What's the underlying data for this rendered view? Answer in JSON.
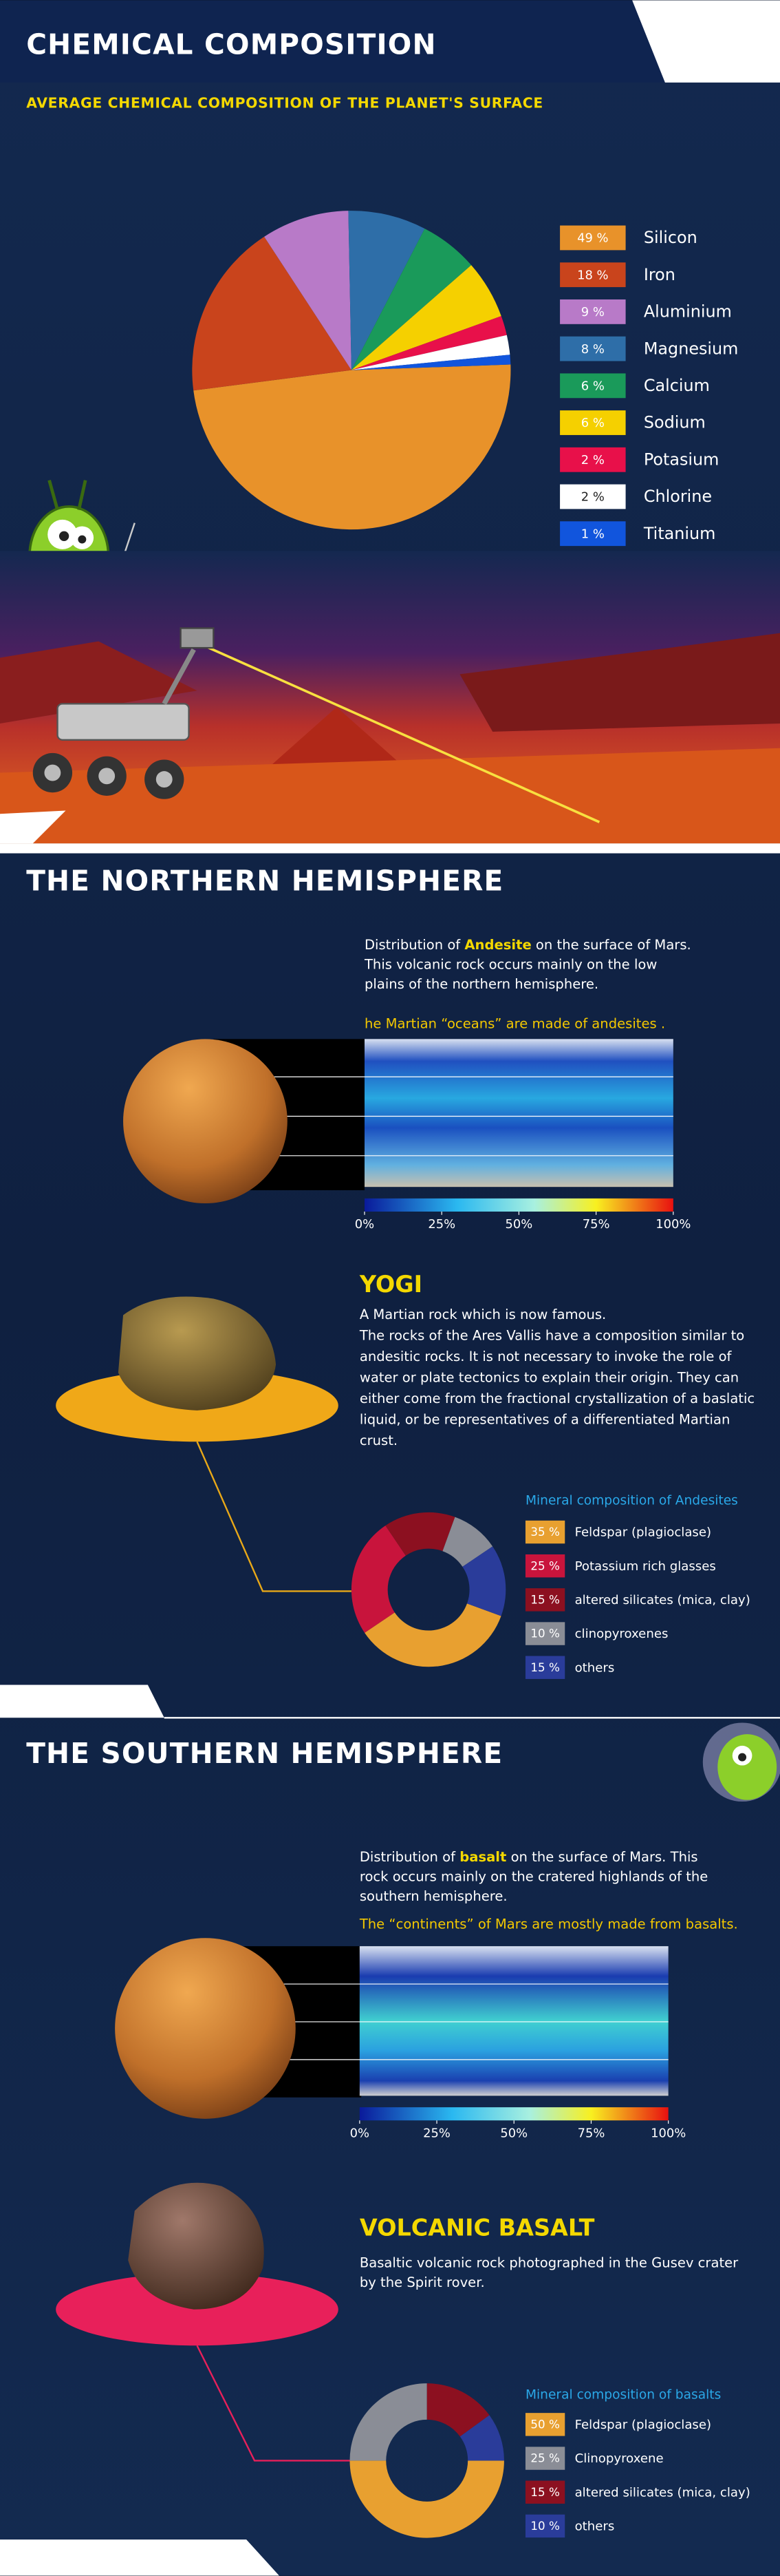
{
  "composition": {
    "type": "pie",
    "title": "CHEMICAL COMPOSITION",
    "subtitle": "AVERAGE CHEMICAL COMPOSITION OF THE PLANET'S SURFACE",
    "categories": [
      "Silicon",
      "Iron",
      "Aluminium",
      "Magnesium",
      "Calcium",
      "Sodium",
      "Potasium",
      "Chlorine",
      "Titanium"
    ],
    "values": [
      49,
      18,
      9,
      8,
      6,
      6,
      2,
      2,
      1
    ],
    "value_labels": [
      "49 %",
      "18 %",
      "9 %",
      "8 %",
      "6 %",
      "6 %",
      "2 %",
      "2 %",
      "1 %"
    ],
    "colors": [
      "#e8922a",
      "#c9441c",
      "#b87ac8",
      "#2e6ea8",
      "#1a9a5a",
      "#f5d000",
      "#e8104a",
      "#ffffff",
      "#1155dd"
    ]
  },
  "north": {
    "heading": "THE NORTHERN HEMISPHERE",
    "description": [
      [
        "Distribution of ",
        "Andesite",
        " on the surface of Mars."
      ],
      [
        "This volcanic rock occurs mainly on the low"
      ],
      [
        "plains of the northern hemisphere."
      ]
    ],
    "note": "he Martian “oceans” are made of andesites .",
    "colorbar": {
      "lim": [
        0,
        100
      ],
      "ticks": [
        {
          "value": 0,
          "label": "0%"
        },
        {
          "value": 25,
          "label": "25%"
        },
        {
          "value": 50,
          "label": "50%"
        },
        {
          "value": 75,
          "label": "75%"
        },
        {
          "value": 100,
          "label": "100%"
        }
      ]
    },
    "rock": {
      "title": "YOGI",
      "text": [
        "A Martian rock which is now famous.",
        "The rocks of the Ares Vallis have a composition similar to",
        "andesitic rocks.  It is not necessary to invoke the role of",
        "water or plate tectonics to explain their origin. They can",
        "either come from the fractional crystallization of a baslatic",
        "liquid, or be representatives of a differentiated Martian",
        "crust."
      ]
    },
    "minerals": {
      "type": "donut",
      "title": "Mineral composition of Andesites",
      "categories": [
        "Feldspar (plagioclase)",
        "Potassium rich glasses",
        "altered silicates (mica, clay)",
        "clinopyroxenes",
        "others"
      ],
      "values": [
        35,
        25,
        15,
        10,
        15
      ],
      "value_labels": [
        "35 %",
        "25 %",
        "15 %",
        "10 %",
        "15 %"
      ],
      "colors": [
        "#e8a030",
        "#c8143c",
        "#8c1020",
        "#8a8d96",
        "#2a3c9a"
      ]
    }
  },
  "south": {
    "heading": "THE SOUTHERN HEMISPHERE",
    "description": [
      [
        "Distribution of ",
        "basalt",
        " on the surface of Mars. This"
      ],
      [
        "rock occurs mainly on the cratered highlands of the"
      ],
      [
        "southern hemisphere."
      ]
    ],
    "note": "The “continents” of Mars are mostly made from basalts.",
    "colorbar": {
      "lim": [
        0,
        100
      ],
      "ticks": [
        {
          "value": 0,
          "label": "0%"
        },
        {
          "value": 25,
          "label": "25%"
        },
        {
          "value": 50,
          "label": "50%"
        },
        {
          "value": 75,
          "label": "75%"
        },
        {
          "value": 100,
          "label": "100%"
        }
      ]
    },
    "rock": {
      "title": "VOLCANIC BASALT",
      "text": [
        "Basaltic volcanic rock photographed in the Gusev crater",
        "by the Spirit rover."
      ]
    },
    "minerals": {
      "type": "donut",
      "title": "Mineral composition of basalts",
      "categories": [
        "Feldspar (plagioclase)",
        "Clinopyroxene",
        "altered silicates (mica, clay)",
        "others"
      ],
      "values": [
        50,
        25,
        15,
        10
      ],
      "value_labels": [
        "50 %",
        "25 %",
        "15 %",
        "10 %"
      ],
      "colors": [
        "#e8a030",
        "#8a8d96",
        "#8c1020",
        "#2a3c9a"
      ]
    }
  }
}
